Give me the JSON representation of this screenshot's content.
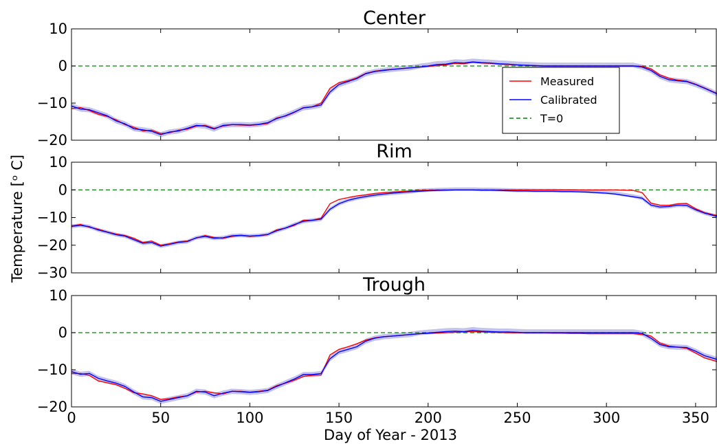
{
  "chart_data": [
    {
      "type": "line",
      "title": "Center",
      "xlabel": "",
      "ylabel": "",
      "xlim": [
        0,
        362
      ],
      "ylim": [
        -20,
        10
      ],
      "yticks": [
        10,
        0,
        -10,
        -20
      ],
      "yticklabels": [
        "10",
        "0",
        "−10",
        "−20"
      ],
      "zero_line": 0,
      "series": [
        {
          "name": "Measured",
          "color": "#ff0000",
          "x": [
            0,
            5,
            10,
            15,
            20,
            25,
            30,
            35,
            40,
            45,
            50,
            55,
            60,
            65,
            70,
            75,
            80,
            85,
            90,
            95,
            100,
            105,
            110,
            115,
            120,
            125,
            130,
            135,
            140,
            145,
            150,
            155,
            160,
            165,
            170,
            175,
            180,
            185,
            190,
            195,
            200,
            205,
            210,
            215,
            220,
            225,
            230,
            235,
            240,
            245,
            250,
            255,
            260,
            265,
            270,
            275,
            280,
            285,
            290,
            295,
            300,
            305,
            310,
            315,
            320,
            325,
            330,
            335,
            340,
            345,
            350,
            355,
            362
          ],
          "y": [
            -11.5,
            -11.2,
            -12,
            -13,
            -13.6,
            -14.5,
            -15.8,
            -16.5,
            -17.5,
            -17.3,
            -18.2,
            -18,
            -17.3,
            -17,
            -16.2,
            -16,
            -16.8,
            -16.2,
            -15.8,
            -15.9,
            -16,
            -15.8,
            -15.5,
            -14,
            -13.5,
            -12.5,
            -11.2,
            -11,
            -10,
            -6,
            -4.5,
            -4,
            -3.2,
            -2,
            -1.4,
            -1.1,
            -0.9,
            -0.7,
            -0.5,
            -0.3,
            -0.1,
            0.1,
            0.3,
            0.7,
            0.6,
            1,
            0.8,
            0.7,
            0.5,
            0.4,
            0.3,
            0.2,
            0.1,
            0,
            0,
            0,
            0,
            0,
            0,
            0,
            0,
            0,
            0,
            0,
            -0.1,
            -0.8,
            -2.4,
            -3.3,
            -3.8,
            -4.1,
            -4.9,
            -5.9,
            -7.4
          ]
        },
        {
          "name": "Calibrated",
          "color": "#0000ff",
          "x": [
            0,
            5,
            10,
            15,
            20,
            25,
            30,
            35,
            40,
            45,
            50,
            55,
            60,
            65,
            70,
            75,
            80,
            85,
            90,
            95,
            100,
            105,
            110,
            115,
            120,
            125,
            130,
            135,
            140,
            145,
            150,
            155,
            160,
            165,
            170,
            175,
            180,
            185,
            190,
            195,
            200,
            205,
            210,
            215,
            220,
            225,
            230,
            235,
            240,
            245,
            250,
            255,
            260,
            265,
            270,
            275,
            280,
            285,
            290,
            295,
            300,
            305,
            310,
            315,
            320,
            325,
            330,
            335,
            340,
            345,
            350,
            355,
            362
          ],
          "y": [
            -10.8,
            -11.6,
            -11.8,
            -12.6,
            -13.4,
            -14.8,
            -15.6,
            -16.9,
            -17.2,
            -17.6,
            -18.5,
            -17.8,
            -17.5,
            -16.8,
            -16,
            -16.2,
            -17,
            -16,
            -15.8,
            -15.8,
            -15.9,
            -15.7,
            -15.3,
            -14.2,
            -13.4,
            -12.4,
            -11.3,
            -11,
            -10.5,
            -7,
            -5,
            -4.2,
            -3.4,
            -2.1,
            -1.5,
            -1.2,
            -0.9,
            -0.7,
            -0.5,
            -0.3,
            0,
            0.4,
            0.5,
            0.9,
            0.8,
            1.1,
            0.9,
            0.8,
            0.6,
            0.5,
            0.3,
            0.2,
            0.1,
            0,
            0,
            0,
            0,
            0,
            0,
            0,
            0,
            0,
            0,
            0,
            -0.3,
            -1.2,
            -2.8,
            -3.7,
            -4,
            -4.2,
            -5,
            -6,
            -7.5
          ]
        }
      ],
      "legend": {
        "position": "center-right",
        "entries": [
          {
            "label": "Measured",
            "color": "#ff0000",
            "style": "solid"
          },
          {
            "label": "Calibrated",
            "color": "#0000ff",
            "style": "solid"
          },
          {
            "label": "T=0",
            "color": "#008000",
            "style": "dashed"
          }
        ]
      }
    },
    {
      "type": "line",
      "title": "Rim",
      "xlabel": "",
      "ylabel": "",
      "xlim": [
        0,
        362
      ],
      "ylim": [
        -30,
        10
      ],
      "yticks": [
        10,
        0,
        -10,
        -20,
        -30
      ],
      "yticklabels": [
        "10",
        "0",
        "−10",
        "−20",
        "−30"
      ],
      "zero_line": 0,
      "series": [
        {
          "name": "Measured",
          "color": "#ff0000",
          "x": [
            0,
            5,
            10,
            15,
            20,
            25,
            30,
            35,
            40,
            45,
            50,
            55,
            60,
            65,
            70,
            75,
            80,
            85,
            90,
            95,
            100,
            105,
            110,
            115,
            120,
            125,
            130,
            135,
            140,
            145,
            150,
            155,
            160,
            165,
            170,
            175,
            180,
            185,
            190,
            195,
            200,
            205,
            210,
            215,
            220,
            225,
            230,
            235,
            240,
            245,
            250,
            255,
            260,
            265,
            270,
            275,
            280,
            285,
            290,
            295,
            300,
            305,
            310,
            315,
            320,
            325,
            330,
            335,
            340,
            345,
            350,
            355,
            362
          ],
          "y": [
            -13,
            -12.5,
            -13.5,
            -14.2,
            -15.2,
            -16,
            -16.5,
            -17.5,
            -19,
            -18.5,
            -20,
            -19.5,
            -18.8,
            -18.5,
            -17.4,
            -16.5,
            -17.2,
            -17.5,
            -16.8,
            -16.5,
            -16.8,
            -16.6,
            -16.2,
            -14.5,
            -13.8,
            -12.8,
            -11,
            -11,
            -10.2,
            -5,
            -3.5,
            -2.8,
            -2.2,
            -1.8,
            -1.3,
            -1,
            -0.8,
            -0.6,
            -0.4,
            -0.2,
            -0.1,
            0,
            0,
            0,
            0,
            0,
            0,
            0,
            0,
            0,
            0,
            0,
            0,
            0,
            0,
            0,
            0,
            0,
            0,
            0,
            0,
            0,
            -0.1,
            -0.2,
            -1,
            -4.8,
            -5.5,
            -5.6,
            -5,
            -4.9,
            -6.8,
            -8.2,
            -9.3
          ]
        },
        {
          "name": "Calibrated",
          "color": "#0000ff",
          "x": [
            0,
            5,
            10,
            15,
            20,
            25,
            30,
            35,
            40,
            45,
            50,
            55,
            60,
            65,
            70,
            75,
            80,
            85,
            90,
            95,
            100,
            105,
            110,
            115,
            120,
            125,
            130,
            135,
            140,
            145,
            150,
            155,
            160,
            165,
            170,
            175,
            180,
            185,
            190,
            195,
            200,
            205,
            210,
            215,
            220,
            225,
            230,
            235,
            240,
            245,
            250,
            255,
            260,
            265,
            270,
            275,
            280,
            285,
            290,
            295,
            300,
            305,
            310,
            315,
            320,
            325,
            330,
            335,
            340,
            345,
            350,
            355,
            362
          ],
          "y": [
            -13.2,
            -12.8,
            -13.3,
            -14.5,
            -15.3,
            -16.2,
            -16.7,
            -18,
            -19.3,
            -19,
            -20.3,
            -19.7,
            -19,
            -18.7,
            -17.3,
            -16.8,
            -17.5,
            -17.3,
            -16.6,
            -16.4,
            -16.7,
            -16.5,
            -16.1,
            -14.8,
            -13.8,
            -12.5,
            -11.4,
            -11,
            -10.6,
            -7,
            -5,
            -3.8,
            -3,
            -2.4,
            -1.9,
            -1.5,
            -1.2,
            -0.9,
            -0.7,
            -0.5,
            -0.3,
            -0.2,
            -0.1,
            0,
            0,
            0,
            -0.1,
            -0.1,
            -0.2,
            -0.3,
            -0.4,
            -0.4,
            -0.5,
            -0.5,
            -0.5,
            -0.6,
            -0.6,
            -0.7,
            -0.8,
            -1,
            -1.2,
            -1.5,
            -2,
            -2.5,
            -3,
            -5.5,
            -6.2,
            -6,
            -5.5,
            -5.6,
            -7.2,
            -8.4,
            -9.6
          ]
        }
      ]
    },
    {
      "type": "line",
      "title": "Trough",
      "xlabel": "Day of Year - 2013",
      "ylabel": "",
      "xlim": [
        0,
        362
      ],
      "ylim": [
        -20,
        10
      ],
      "xticks": [
        0,
        50,
        100,
        150,
        200,
        250,
        300,
        350
      ],
      "yticks": [
        10,
        0,
        -10,
        -20
      ],
      "yticklabels": [
        "10",
        "0",
        "−10",
        "−20"
      ],
      "zero_line": 0,
      "series": [
        {
          "name": "Measured",
          "color": "#ff0000",
          "x": [
            0,
            5,
            10,
            15,
            20,
            25,
            30,
            35,
            40,
            45,
            50,
            55,
            60,
            65,
            70,
            75,
            80,
            85,
            90,
            95,
            100,
            105,
            110,
            115,
            120,
            125,
            130,
            135,
            140,
            145,
            150,
            155,
            160,
            165,
            170,
            175,
            180,
            185,
            190,
            195,
            200,
            205,
            210,
            215,
            220,
            225,
            230,
            235,
            240,
            245,
            250,
            255,
            260,
            265,
            270,
            275,
            280,
            285,
            290,
            295,
            300,
            305,
            310,
            315,
            320,
            325,
            330,
            335,
            340,
            345,
            350,
            355,
            362
          ],
          "y": [
            -11,
            -11,
            -11.5,
            -13,
            -13.5,
            -14,
            -15,
            -16.2,
            -16.5,
            -17,
            -18,
            -17.8,
            -17.3,
            -17,
            -16,
            -15.8,
            -16.2,
            -16.5,
            -15.8,
            -15.8,
            -16,
            -15.8,
            -15.5,
            -14.3,
            -13.6,
            -12.8,
            -11.8,
            -11.5,
            -11.4,
            -6,
            -4.5,
            -3.8,
            -3,
            -2,
            -1.4,
            -1.1,
            -0.9,
            -0.7,
            -0.5,
            -0.3,
            -0.2,
            -0.1,
            0,
            0.1,
            0.2,
            0.3,
            0.2,
            0.1,
            0.1,
            0,
            0,
            0,
            0,
            0,
            -0.1,
            -0.1,
            -0.2,
            -0.2,
            -0.3,
            -0.3,
            -0.3,
            -0.3,
            -0.3,
            -0.3,
            -0.5,
            -0.9,
            -2.8,
            -3.6,
            -3.9,
            -4.2,
            -5.5,
            -6.8,
            -7.8
          ]
        },
        {
          "name": "Calibrated",
          "color": "#0000ff",
          "x": [
            0,
            5,
            10,
            15,
            20,
            25,
            30,
            35,
            40,
            45,
            50,
            55,
            60,
            65,
            70,
            75,
            80,
            85,
            90,
            95,
            100,
            105,
            110,
            115,
            120,
            125,
            130,
            135,
            140,
            145,
            150,
            155,
            160,
            165,
            170,
            175,
            180,
            185,
            190,
            195,
            200,
            205,
            210,
            215,
            220,
            225,
            230,
            235,
            240,
            245,
            250,
            255,
            260,
            265,
            270,
            275,
            280,
            285,
            290,
            295,
            300,
            305,
            310,
            315,
            320,
            325,
            330,
            335,
            340,
            345,
            350,
            355,
            362
          ],
          "y": [
            -10.5,
            -11.2,
            -11,
            -12.3,
            -13,
            -13.6,
            -14.5,
            -16,
            -17.3,
            -17.5,
            -18.5,
            -18,
            -17.5,
            -17,
            -15.8,
            -16,
            -17,
            -16.3,
            -15.8,
            -15.9,
            -16.1,
            -15.9,
            -15.6,
            -14.5,
            -13.5,
            -12.5,
            -11.3,
            -11.3,
            -11,
            -7,
            -5.2,
            -4.5,
            -3.8,
            -2.3,
            -1.5,
            -1.1,
            -0.9,
            -0.7,
            -0.5,
            -0.3,
            -0.1,
            0.1,
            0.3,
            0.4,
            0.3,
            0.6,
            0.4,
            0.3,
            0.2,
            0.2,
            0.1,
            0,
            0,
            0,
            0,
            0,
            0,
            0,
            0,
            0,
            0,
            0,
            0,
            0,
            -0.2,
            -1.5,
            -3.2,
            -3.8,
            -3.9,
            -4,
            -5,
            -6.2,
            -7.2
          ]
        }
      ]
    }
  ],
  "shared_ylabel": "Temperature [ᵒ C]",
  "shared_xlabel": "Day of Year - 2013",
  "colors": {
    "measured": "#ff0000",
    "calibrated": "#0000ff",
    "zero_line": "#008000",
    "uncertainty_band": "#b7b7e8"
  }
}
